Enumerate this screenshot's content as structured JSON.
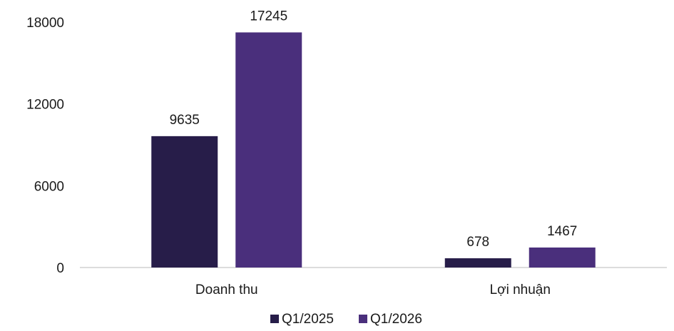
{
  "chart_data": {
    "type": "bar",
    "title": "",
    "xlabel": "",
    "ylabel": "",
    "categories": [
      "Doanh thu",
      "Lợi nhuận"
    ],
    "series": [
      {
        "name": "Q1/2025",
        "values": [
          9635,
          678
        ],
        "color": "#271d49"
      },
      {
        "name": "Q1/2026",
        "values": [
          17245,
          1467
        ],
        "color": "#4a2f7c"
      }
    ],
    "ylim": [
      0,
      18000
    ],
    "yticks": [
      0,
      6000,
      12000,
      18000
    ],
    "grid": false,
    "legend": "bottom-center",
    "data_labels": true
  }
}
